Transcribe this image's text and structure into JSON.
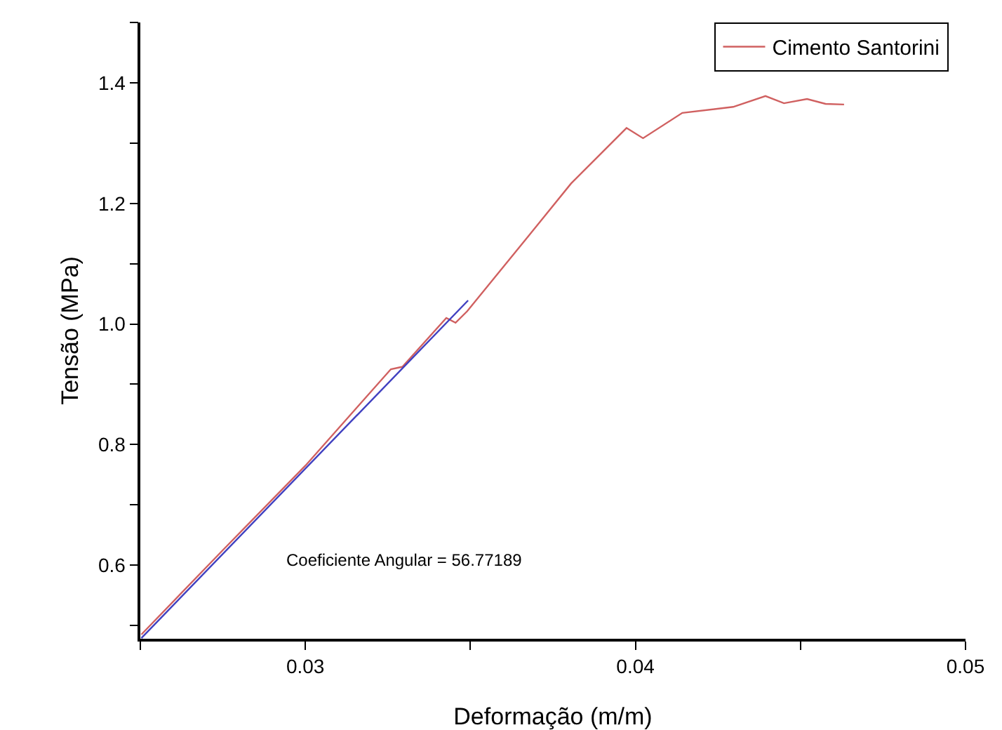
{
  "chart_data": {
    "type": "line",
    "xlabel": "Deformação (m/m)",
    "ylabel": "Tensão (MPa)",
    "series": [
      {
        "name": "Cimento Santorini",
        "color": "#d06060",
        "x": [
          0.02503,
          0.0275,
          0.03,
          0.03259,
          0.03294,
          0.03427,
          0.03455,
          0.0349,
          0.03679,
          0.03805,
          0.03847,
          0.03973,
          0.04023,
          0.04142,
          0.04296,
          0.04394,
          0.0445,
          0.0452,
          0.04576,
          0.04632
        ],
        "values": [
          0.485,
          0.625,
          0.765,
          0.925,
          0.929,
          1.01,
          1.002,
          1.021,
          1.148,
          1.233,
          1.256,
          1.325,
          1.308,
          1.35,
          1.36,
          1.378,
          1.366,
          1.373,
          1.365,
          1.364
        ]
      },
      {
        "type": "line",
        "color": "#4040c0",
        "x": [
          0.02503,
          0.03493
        ],
        "values": [
          0.479,
          1.039
        ]
      }
    ],
    "xlim": [
      0.025,
      0.05
    ],
    "xticks": [
      {
        "value": 0.025,
        "label": null
      },
      0.03,
      {
        "value": 0.035,
        "label": null
      },
      0.04,
      {
        "value": 0.045,
        "label": null
      },
      0.05
    ],
    "ylim": [
      0.478,
      1.5
    ],
    "yticks": [
      {
        "value": 0.5,
        "label": null
      },
      0.6,
      {
        "value": 0.7,
        "label": null
      },
      0.8,
      {
        "value": 0.9,
        "label": null
      },
      {
        "value": 1.0,
        "label": "1.0"
      },
      {
        "value": 1.1,
        "label": null
      },
      1.2,
      {
        "value": 1.3,
        "label": null
      },
      1.4,
      {
        "value": 1.5,
        "label": null
      }
    ],
    "annotations": [
      "Coeficiente Angular = 56.77189"
    ],
    "legend": "top right",
    "grid": false
  }
}
